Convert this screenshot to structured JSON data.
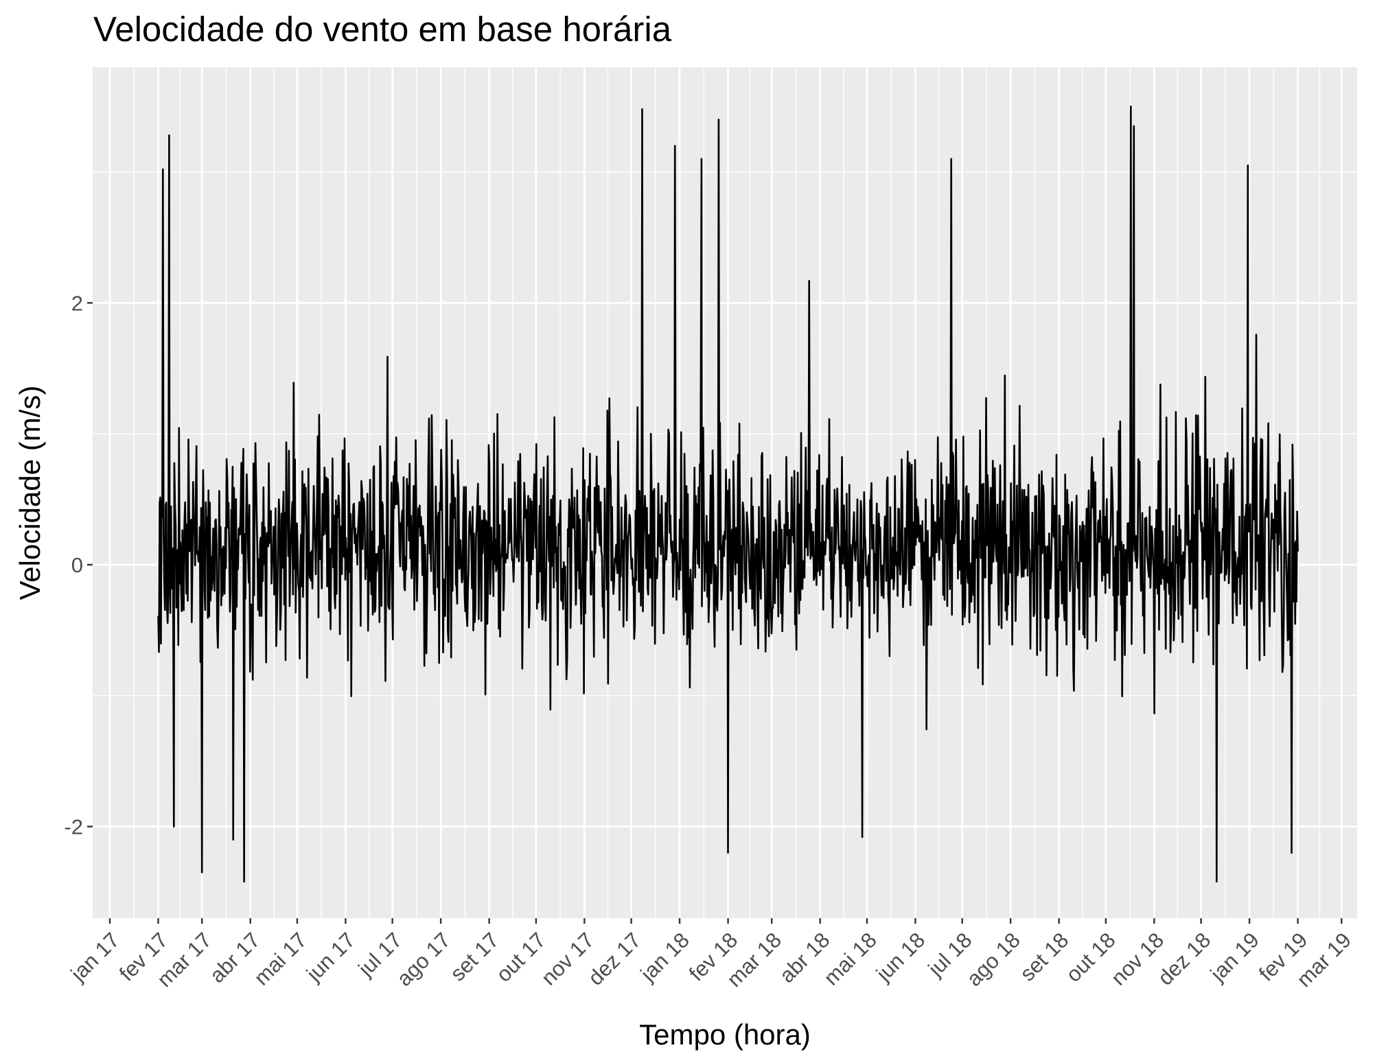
{
  "chart_data": {
    "type": "line",
    "title": "Velocidade do vento em base horária",
    "xlabel": "Tempo (hora)",
    "ylabel": "Velocidade (m/s)",
    "x_tick_labels": [
      "jan 17",
      "fev 17",
      "mar 17",
      "abr 17",
      "mai 17",
      "jun 17",
      "jul 17",
      "ago 17",
      "set 17",
      "out 17",
      "nov 17",
      "dez 17",
      "jan 18",
      "fev 18",
      "mar 18",
      "abr 18",
      "mai 18",
      "jun 18",
      "jul 18",
      "ago 18",
      "set 18",
      "out 18",
      "nov 18",
      "dez 18",
      "jan 19",
      "fev 19",
      "mar 19"
    ],
    "x_tick_dates": [
      "2017-01-01",
      "2017-02-01",
      "2017-03-01",
      "2017-04-01",
      "2017-05-01",
      "2017-06-01",
      "2017-07-01",
      "2017-08-01",
      "2017-09-01",
      "2017-10-01",
      "2017-11-01",
      "2017-12-01",
      "2018-01-01",
      "2018-02-01",
      "2018-03-01",
      "2018-04-01",
      "2018-05-01",
      "2018-06-01",
      "2018-07-01",
      "2018-08-01",
      "2018-09-01",
      "2018-10-01",
      "2018-11-01",
      "2018-12-01",
      "2019-01-01",
      "2019-02-01",
      "2019-03-01"
    ],
    "y_ticks": [
      -2,
      0,
      2
    ],
    "y_tick_labels": [
      "-2",
      "0",
      "2"
    ],
    "xlim": [
      "2016-12-21",
      "2019-03-11"
    ],
    "ylim": [
      -2.7,
      3.8
    ],
    "grid": true,
    "legend": "none",
    "line_color": "#000000",
    "panel_background": "#ebebeb",
    "grid_color": "#ffffff",
    "series": [
      {
        "x_range": [
          "2017-02-01",
          "2019-02-01"
        ],
        "resolution": "hourly",
        "values_note": "hourly series fluctuating around 0; typical envelope about -1.1 to 1.5",
        "extremes": [
          {
            "x": "2017-02-08",
            "y": 3.28
          },
          {
            "x": "2017-02-04",
            "y": 3.02
          },
          {
            "x": "2017-02-11",
            "y": -2.0
          },
          {
            "x": "2017-03-01",
            "y": -2.35
          },
          {
            "x": "2017-03-28",
            "y": -2.42
          },
          {
            "x": "2017-03-21",
            "y": -2.1
          },
          {
            "x": "2017-12-08",
            "y": 3.48
          },
          {
            "x": "2017-12-29",
            "y": 3.2
          },
          {
            "x": "2018-01-15",
            "y": 3.1
          },
          {
            "x": "2018-01-26",
            "y": 3.4
          },
          {
            "x": "2018-02-01",
            "y": -2.2
          },
          {
            "x": "2018-04-28",
            "y": -2.08
          },
          {
            "x": "2018-06-24",
            "y": 3.1
          },
          {
            "x": "2018-10-17",
            "y": 3.5
          },
          {
            "x": "2018-10-19",
            "y": 3.35
          },
          {
            "x": "2018-12-11",
            "y": -2.42
          },
          {
            "x": "2018-12-31",
            "y": 3.05
          },
          {
            "x": "2019-01-28",
            "y": -2.2
          }
        ]
      }
    ]
  }
}
